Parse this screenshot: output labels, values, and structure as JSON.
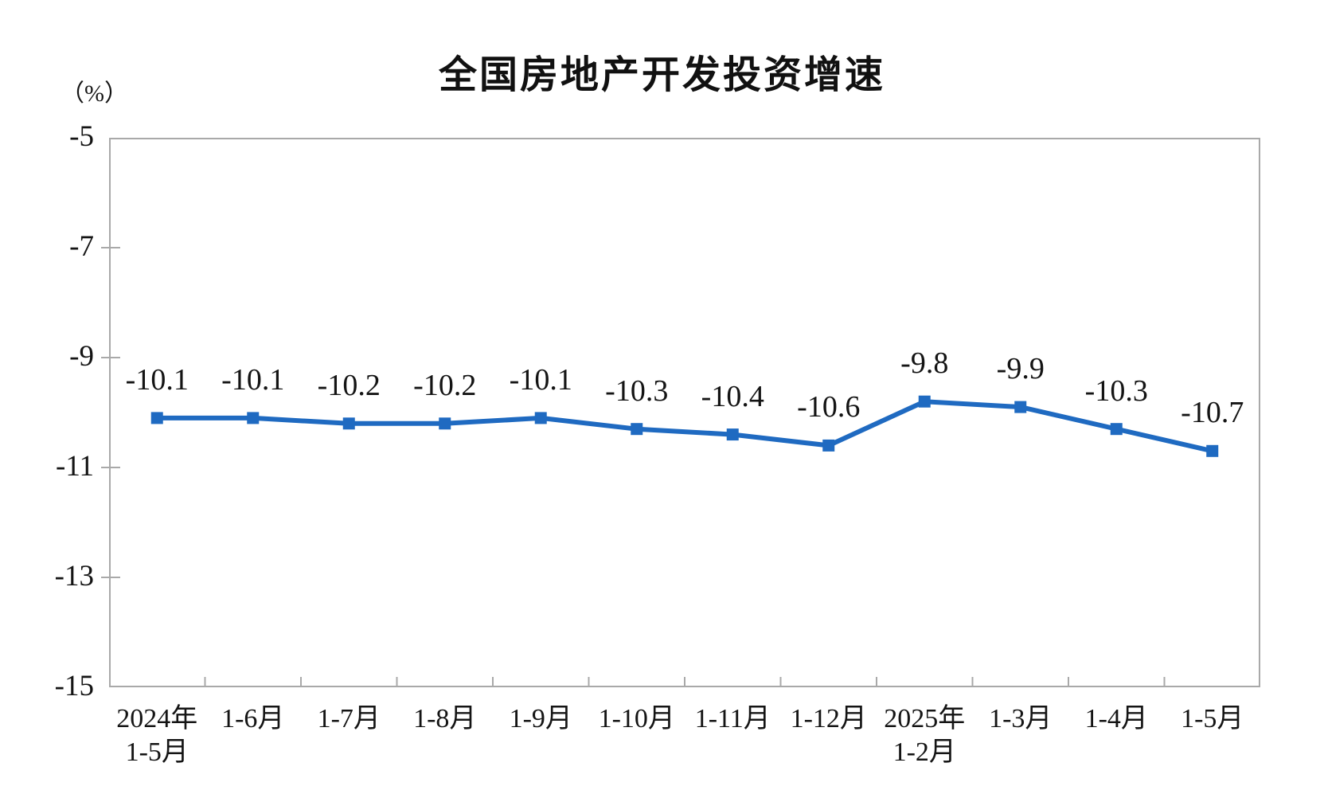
{
  "chart_data": {
    "type": "line",
    "title": "全国房地产开发投资增速",
    "ylabel": "（%）",
    "xlabel": "",
    "categories": [
      [
        "2024年",
        "1-5月"
      ],
      [
        "1-6月"
      ],
      [
        "1-7月"
      ],
      [
        "1-8月"
      ],
      [
        "1-9月"
      ],
      [
        "1-10月"
      ],
      [
        "1-11月"
      ],
      [
        "1-12月"
      ],
      [
        "2025年",
        "1-2月"
      ],
      [
        "1-3月"
      ],
      [
        "1-4月"
      ],
      [
        "1-5月"
      ]
    ],
    "values": [
      -10.1,
      -10.1,
      -10.2,
      -10.2,
      -10.1,
      -10.3,
      -10.4,
      -10.6,
      -9.8,
      -9.9,
      -10.3,
      -10.7
    ],
    "data_labels": [
      "-10.1",
      "-10.1",
      "-10.2",
      "-10.2",
      "-10.1",
      "-10.3",
      "-10.4",
      "-10.6",
      "-9.8",
      "-9.9",
      "-10.3",
      "-10.7"
    ],
    "ylim": [
      -15,
      -5
    ],
    "yticks": [
      -5,
      -7,
      -9,
      -11,
      -13,
      -15
    ],
    "grid": false,
    "legend_position": "none",
    "marker": "square",
    "colors": {
      "line": "#1f6ac1",
      "marker": "#1f6ac1",
      "axis": "#a9a9a9",
      "text": "#141414",
      "title": "#111111",
      "background": "#ffffff"
    }
  }
}
